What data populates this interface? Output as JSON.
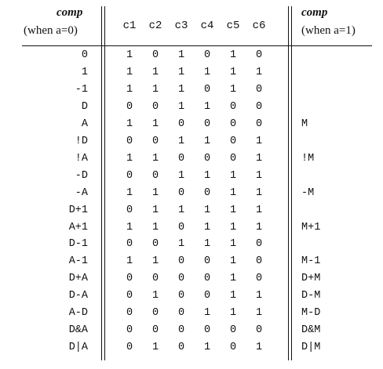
{
  "header": {
    "left_title": "comp",
    "left_sub": "(when a=0)",
    "bits": [
      "c1",
      "c2",
      "c3",
      "c4",
      "c5",
      "c6"
    ],
    "right_title": "comp",
    "right_sub": "(when a=1)"
  },
  "rows": [
    {
      "left": "0",
      "bits": [
        "1",
        "0",
        "1",
        "0",
        "1",
        "0"
      ],
      "right": ""
    },
    {
      "left": "1",
      "bits": [
        "1",
        "1",
        "1",
        "1",
        "1",
        "1"
      ],
      "right": ""
    },
    {
      "left": "-1",
      "bits": [
        "1",
        "1",
        "1",
        "0",
        "1",
        "0"
      ],
      "right": ""
    },
    {
      "left": "D",
      "bits": [
        "0",
        "0",
        "1",
        "1",
        "0",
        "0"
      ],
      "right": ""
    },
    {
      "left": "A",
      "bits": [
        "1",
        "1",
        "0",
        "0",
        "0",
        "0"
      ],
      "right": "M"
    },
    {
      "left": "!D",
      "bits": [
        "0",
        "0",
        "1",
        "1",
        "0",
        "1"
      ],
      "right": ""
    },
    {
      "left": "!A",
      "bits": [
        "1",
        "1",
        "0",
        "0",
        "0",
        "1"
      ],
      "right": "!M"
    },
    {
      "left": "-D",
      "bits": [
        "0",
        "0",
        "1",
        "1",
        "1",
        "1"
      ],
      "right": ""
    },
    {
      "left": "-A",
      "bits": [
        "1",
        "1",
        "0",
        "0",
        "1",
        "1"
      ],
      "right": "-M"
    },
    {
      "left": "D+1",
      "bits": [
        "0",
        "1",
        "1",
        "1",
        "1",
        "1"
      ],
      "right": ""
    },
    {
      "left": "A+1",
      "bits": [
        "1",
        "1",
        "0",
        "1",
        "1",
        "1"
      ],
      "right": "M+1"
    },
    {
      "left": "D-1",
      "bits": [
        "0",
        "0",
        "1",
        "1",
        "1",
        "0"
      ],
      "right": ""
    },
    {
      "left": "A-1",
      "bits": [
        "1",
        "1",
        "0",
        "0",
        "1",
        "0"
      ],
      "right": "M-1"
    },
    {
      "left": "D+A",
      "bits": [
        "0",
        "0",
        "0",
        "0",
        "1",
        "0"
      ],
      "right": "D+M"
    },
    {
      "left": "D-A",
      "bits": [
        "0",
        "1",
        "0",
        "0",
        "1",
        "1"
      ],
      "right": "D-M"
    },
    {
      "left": "A-D",
      "bits": [
        "0",
        "0",
        "0",
        "1",
        "1",
        "1"
      ],
      "right": "M-D"
    },
    {
      "left": "D&A",
      "bits": [
        "0",
        "0",
        "0",
        "0",
        "0",
        "0"
      ],
      "right": "D&M"
    },
    {
      "left": "D|A",
      "bits": [
        "0",
        "1",
        "0",
        "1",
        "0",
        "1"
      ],
      "right": "D|M"
    }
  ]
}
